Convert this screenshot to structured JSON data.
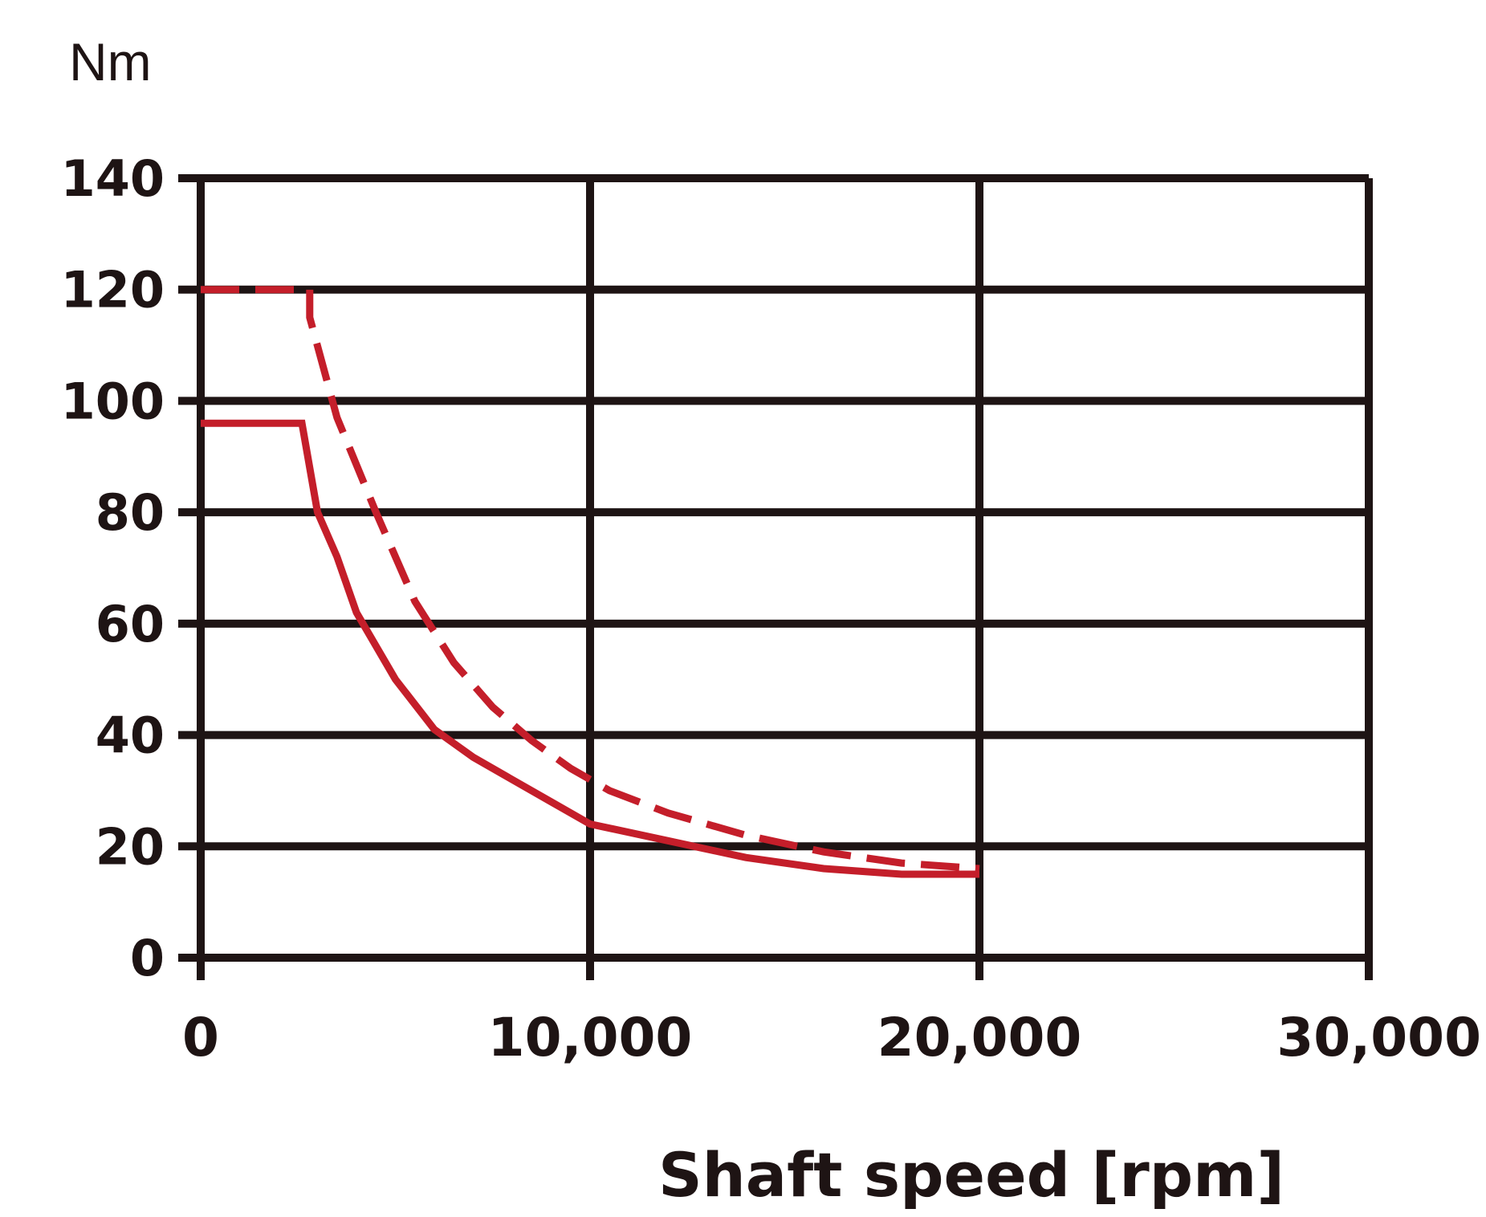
{
  "chart_data": {
    "type": "line",
    "title": "",
    "ylabel": "Nm",
    "xlabel": "Shaft speed [rpm]",
    "xlim": [
      0,
      30000
    ],
    "ylim": [
      0,
      140
    ],
    "x_ticks": [
      "0",
      "10,000",
      "20,000",
      "30,000"
    ],
    "x_tick_values": [
      0,
      10000,
      20000,
      30000
    ],
    "y_ticks": [
      "0",
      "20",
      "40",
      "60",
      "80",
      "100",
      "120",
      "140"
    ],
    "y_tick_values": [
      0,
      20,
      40,
      60,
      80,
      100,
      120,
      140
    ],
    "grid": true,
    "colors": {
      "axis": "#1e1414",
      "series": "#c41e2a"
    },
    "series": [
      {
        "style": "dashed",
        "x": [
          0,
          2800,
          2800,
          3500,
          4500,
          5500,
          6500,
          7500,
          8500,
          9500,
          10500,
          12000,
          14000,
          16000,
          18000,
          20000
        ],
        "y": [
          120,
          120,
          115,
          97,
          80,
          64,
          53,
          45,
          39,
          34,
          30,
          26,
          22,
          19,
          17,
          16
        ]
      },
      {
        "style": "solid",
        "x": [
          0,
          2600,
          3000,
          3500,
          4000,
          5000,
          6000,
          7000,
          8000,
          9000,
          10000,
          12000,
          14000,
          16000,
          18000,
          20000
        ],
        "y": [
          96,
          96,
          80,
          72,
          62,
          50,
          41,
          36,
          32,
          28,
          24,
          21,
          18,
          16,
          15,
          15
        ]
      }
    ]
  }
}
